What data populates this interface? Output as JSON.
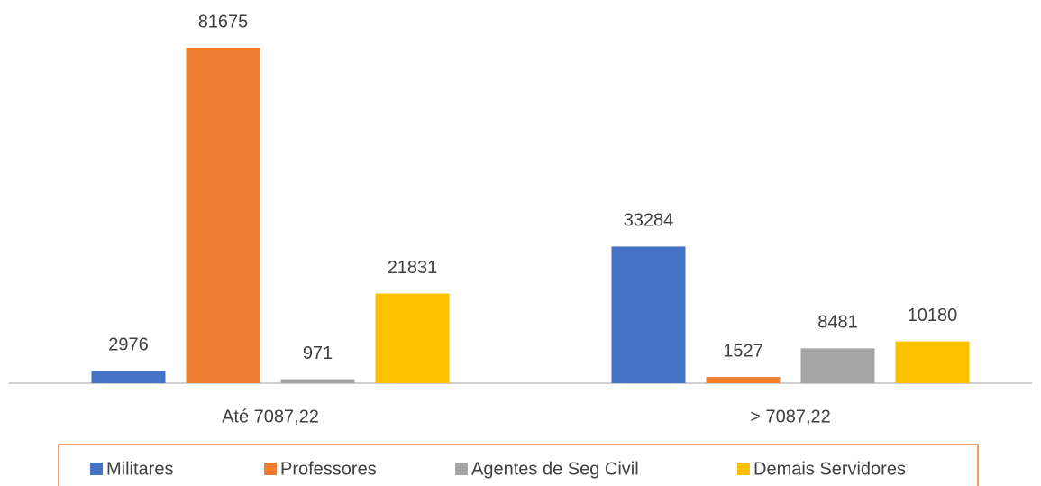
{
  "chart_data": {
    "type": "bar",
    "categories": [
      "Até 7087,22",
      "> 7087,22"
    ],
    "series": [
      {
        "name": "Militares",
        "color": "#4472c4",
        "values": [
          2976,
          33284
        ]
      },
      {
        "name": "Professores",
        "color": "#ed7d31",
        "values": [
          81675,
          1527
        ]
      },
      {
        "name": "Agentes de Seg Civil",
        "color": "#a5a5a5",
        "values": [
          971,
          8481
        ]
      },
      {
        "name": "Demais Servidores",
        "color": "#ffc000",
        "values": [
          21831,
          10180
        ]
      }
    ],
    "legend": "bottom"
  }
}
